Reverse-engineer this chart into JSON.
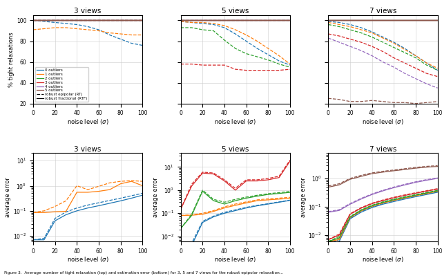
{
  "noise_levels": [
    0,
    10,
    20,
    30,
    40,
    50,
    60,
    70,
    80,
    90,
    100
  ],
  "colors": {
    "0": "#1f77b4",
    "1": "#ff7f0e",
    "2": "#2ca02c",
    "3": "#d62728",
    "4": "#9467bd",
    "5": "#8c564b"
  },
  "top_3views": {
    "RTF_0": [
      100,
      100,
      100,
      100,
      100,
      100,
      100,
      100,
      100,
      100,
      100
    ],
    "RTF_1": [
      100,
      100,
      100,
      100,
      100,
      100,
      100,
      100,
      100,
      100,
      100
    ],
    "RTF_2": [
      100,
      100,
      100,
      100,
      100,
      100,
      100,
      100,
      100,
      100,
      100
    ],
    "RTF_3": [
      100,
      100,
      100,
      100,
      100,
      100,
      100,
      100,
      100,
      100,
      100
    ],
    "RTF_4": [
      100,
      100,
      100,
      100,
      100,
      100,
      100,
      100,
      100,
      100,
      100
    ],
    "RTF_5": [
      100,
      100,
      100,
      100,
      100,
      100,
      100,
      100,
      100,
      100,
      100
    ],
    "RT_0": [
      100,
      99,
      98,
      97,
      96,
      94,
      91,
      86,
      82,
      78,
      76
    ],
    "RT_1": [
      91,
      92,
      93,
      93,
      92,
      91,
      90,
      88,
      87,
      86,
      86
    ],
    "RT_2": [
      100,
      100,
      100,
      100,
      100,
      100,
      100,
      100,
      100,
      100,
      100
    ],
    "RT_3": [
      100,
      100,
      100,
      100,
      100,
      100,
      100,
      100,
      100,
      100,
      100
    ],
    "RT_4": [
      100,
      100,
      100,
      100,
      100,
      100,
      100,
      100,
      100,
      100,
      100
    ],
    "RT_5": [
      100,
      100,
      100,
      100,
      100,
      100,
      100,
      100,
      100,
      100,
      100
    ]
  },
  "top_5views": {
    "RTF_0": [
      100,
      100,
      100,
      100,
      100,
      100,
      100,
      100,
      100,
      100,
      100
    ],
    "RTF_1": [
      100,
      100,
      100,
      100,
      100,
      100,
      100,
      100,
      100,
      100,
      100
    ],
    "RTF_2": [
      100,
      100,
      100,
      100,
      100,
      100,
      100,
      100,
      100,
      100,
      100
    ],
    "RTF_3": [
      100,
      100,
      100,
      100,
      100,
      100,
      100,
      100,
      100,
      100,
      100
    ],
    "RTF_4": [
      100,
      100,
      100,
      100,
      100,
      100,
      100,
      100,
      100,
      100,
      100
    ],
    "RTF_5": [
      100,
      100,
      100,
      100,
      100,
      100,
      100,
      100,
      100,
      100,
      100
    ],
    "RT_0": [
      99,
      98,
      97,
      96,
      93,
      87,
      80,
      73,
      67,
      61,
      57
    ],
    "RT_1": [
      99,
      98,
      98,
      97,
      95,
      91,
      86,
      80,
      73,
      66,
      58
    ],
    "RT_2": [
      93,
      93,
      91,
      90,
      81,
      73,
      68,
      65,
      62,
      58,
      55
    ],
    "RT_3": [
      58,
      58,
      57,
      57,
      57,
      53,
      52,
      52,
      52,
      52,
      53
    ],
    "RT_4": [
      100,
      100,
      100,
      100,
      100,
      100,
      100,
      100,
      100,
      100,
      100
    ],
    "RT_5": [
      100,
      100,
      100,
      100,
      100,
      100,
      100,
      100,
      100,
      100,
      100
    ]
  },
  "top_7views": {
    "RTF_0": [
      100,
      100,
      100,
      100,
      100,
      100,
      100,
      100,
      100,
      100,
      100
    ],
    "RTF_1": [
      100,
      100,
      100,
      100,
      100,
      100,
      100,
      100,
      100,
      100,
      100
    ],
    "RTF_2": [
      100,
      100,
      100,
      100,
      100,
      100,
      100,
      100,
      100,
      100,
      100
    ],
    "RTF_3": [
      100,
      100,
      100,
      100,
      100,
      100,
      100,
      100,
      100,
      100,
      100
    ],
    "RTF_4": [
      100,
      100,
      100,
      100,
      100,
      100,
      100,
      100,
      100,
      100,
      100
    ],
    "RTF_5": [
      100,
      100,
      100,
      100,
      100,
      100,
      100,
      100,
      100,
      100,
      100
    ],
    "RT_0": [
      99,
      98,
      96,
      93,
      89,
      84,
      79,
      73,
      66,
      59,
      52
    ],
    "RT_1": [
      98,
      96,
      94,
      91,
      88,
      83,
      78,
      72,
      66,
      59,
      54
    ],
    "RT_2": [
      96,
      94,
      91,
      88,
      84,
      79,
      74,
      69,
      64,
      57,
      52
    ],
    "RT_3": [
      87,
      85,
      82,
      79,
      75,
      70,
      64,
      59,
      54,
      49,
      46
    ],
    "RT_4": [
      83,
      79,
      75,
      71,
      66,
      60,
      55,
      49,
      44,
      39,
      35
    ],
    "RT_5": [
      25,
      24,
      22,
      22,
      23,
      22,
      21,
      21,
      20,
      21,
      22
    ]
  },
  "bot_3views": {
    "RTF_0": [
      0.007,
      0.007,
      0.04,
      0.07,
      0.1,
      0.13,
      0.16,
      0.2,
      0.25,
      0.32,
      0.42
    ],
    "RTF_1": [
      0.085,
      0.085,
      0.092,
      0.095,
      0.55,
      0.55,
      0.6,
      0.7,
      1.2,
      1.5,
      1.0
    ],
    "RT_0": [
      0.007,
      0.008,
      0.05,
      0.09,
      0.13,
      0.17,
      0.21,
      0.26,
      0.32,
      0.4,
      0.5
    ],
    "RT_1": [
      0.085,
      0.1,
      0.15,
      0.25,
      1.0,
      0.7,
      0.95,
      1.3,
      1.5,
      1.6,
      1.5
    ]
  },
  "bot_5views": {
    "RTF_0": [
      0.004,
      0.004,
      0.04,
      0.07,
      0.1,
      0.13,
      0.17,
      0.21,
      0.25,
      0.3,
      0.36
    ],
    "RTF_1": [
      0.08,
      0.082,
      0.09,
      0.12,
      0.17,
      0.22,
      0.28,
      0.35,
      0.38,
      0.41,
      0.44
    ],
    "RTF_2": [
      0.022,
      0.08,
      0.9,
      0.35,
      0.25,
      0.35,
      0.45,
      0.55,
      0.65,
      0.72,
      0.8
    ],
    "RTF_3": [
      0.15,
      1.5,
      5.5,
      5.0,
      2.5,
      1.0,
      2.5,
      2.5,
      2.8,
      3.5,
      18.0
    ],
    "RT_0": [
      0.004,
      0.005,
      0.045,
      0.075,
      0.11,
      0.14,
      0.18,
      0.22,
      0.26,
      0.31,
      0.37
    ],
    "RT_1": [
      0.08,
      0.085,
      0.1,
      0.13,
      0.19,
      0.25,
      0.31,
      0.38,
      0.42,
      0.45,
      0.49
    ],
    "RT_2": [
      0.022,
      0.09,
      1.0,
      0.4,
      0.3,
      0.4,
      0.5,
      0.6,
      0.7,
      0.78,
      0.88
    ],
    "RT_3": [
      0.15,
      1.8,
      6.0,
      5.5,
      2.8,
      1.2,
      2.8,
      2.8,
      3.2,
      4.0,
      20.0
    ]
  },
  "bot_7views": {
    "RTF_0": [
      0.005,
      0.006,
      0.038,
      0.065,
      0.095,
      0.125,
      0.155,
      0.19,
      0.23,
      0.275,
      0.33
    ],
    "RTF_1": [
      0.006,
      0.007,
      0.042,
      0.072,
      0.105,
      0.138,
      0.17,
      0.208,
      0.25,
      0.298,
      0.355
    ],
    "RTF_2": [
      0.006,
      0.008,
      0.044,
      0.076,
      0.11,
      0.145,
      0.18,
      0.218,
      0.262,
      0.312,
      0.37
    ],
    "RTF_3": [
      0.007,
      0.01,
      0.055,
      0.09,
      0.13,
      0.168,
      0.21,
      0.255,
      0.305,
      0.36,
      0.425
    ],
    "RTF_4": [
      0.065,
      0.075,
      0.125,
      0.19,
      0.275,
      0.37,
      0.48,
      0.6,
      0.74,
      0.88,
      1.02
    ],
    "RTF_5": [
      0.5,
      0.6,
      0.95,
      1.2,
      1.5,
      1.7,
      1.9,
      2.1,
      2.35,
      2.55,
      2.7
    ],
    "RT_0": [
      0.005,
      0.007,
      0.04,
      0.068,
      0.1,
      0.132,
      0.163,
      0.2,
      0.24,
      0.287,
      0.345
    ],
    "RT_1": [
      0.006,
      0.008,
      0.044,
      0.075,
      0.11,
      0.144,
      0.178,
      0.217,
      0.26,
      0.31,
      0.368
    ],
    "RT_2": [
      0.006,
      0.009,
      0.046,
      0.079,
      0.115,
      0.152,
      0.188,
      0.228,
      0.273,
      0.325,
      0.385
    ],
    "RT_3": [
      0.007,
      0.011,
      0.058,
      0.094,
      0.136,
      0.176,
      0.22,
      0.267,
      0.318,
      0.376,
      0.443
    ],
    "RT_4": [
      0.068,
      0.08,
      0.132,
      0.2,
      0.288,
      0.388,
      0.504,
      0.63,
      0.776,
      0.924,
      1.07
    ],
    "RT_5": [
      0.55,
      0.66,
      1.02,
      1.3,
      1.6,
      1.82,
      2.02,
      2.25,
      2.5,
      2.72,
      2.88
    ]
  },
  "caption": "Figure 3.  Average number of tight relaxation (top) and estimation error (bottom) for 3, 5 and 7 views for the robust epipolar relaxation..."
}
